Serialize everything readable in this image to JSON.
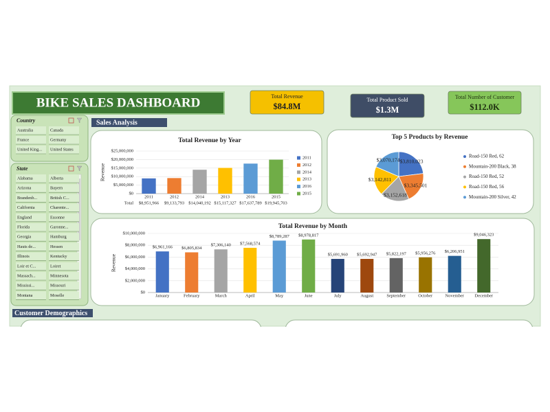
{
  "header": {
    "title": "BIKE SALES DASHBOARD"
  },
  "kpis": [
    {
      "label": "Total Revenue",
      "value": "$84.8M",
      "color": "#f5c000",
      "text_color": "#222222"
    },
    {
      "label": "Total Product Sold",
      "value": "$1.3M",
      "color": "#3f4d66",
      "text_color": "#ffffff"
    },
    {
      "label": "Total Number of Customer",
      "value": "$112.0K",
      "color": "#86c65a",
      "text_color": "#1e2e10"
    }
  ],
  "sections": [
    "Sales Analysis",
    "Customer Demographics"
  ],
  "slicers": [
    {
      "title": "Country",
      "items": [
        "Australia",
        "Canada",
        "France",
        "Germany",
        "United King...",
        "United States"
      ]
    },
    {
      "title": "State",
      "items": [
        "Alabama",
        "Alberta",
        "Arizona",
        "Bayern",
        "Brandenb...",
        "British C...",
        "California",
        "Charente...",
        "England",
        "Essonne",
        "Florida",
        "Garonne...",
        "Georgia",
        "Hamburg",
        "Hauts de...",
        "Hessen",
        "Illinois",
        "Kentucky",
        "Loir et C...",
        "Loiret",
        "Massach...",
        "Minnesota",
        "Mississi...",
        "Missouri",
        "Montana",
        "Moselle"
      ]
    }
  ],
  "chart_data": [
    {
      "type": "bar",
      "title": "Total Revenue by Year",
      "y_label": "Revenue",
      "table_label": "Total",
      "categories": [
        "2011",
        "2012",
        "2014",
        "2013",
        "2016",
        "2015"
      ],
      "values": [
        8951966,
        9133793,
        14040192,
        15117327,
        17637789,
        19945703
      ],
      "value_labels": [
        "$8,951,966",
        "$9,133,793",
        "$14,040,192",
        "$15,117,327",
        "$17,637,789",
        "$19,945,703"
      ],
      "colors": [
        "#4472c4",
        "#ed7d31",
        "#a5a5a5",
        "#ffc000",
        "#5b9bd5",
        "#70ad47"
      ],
      "ylim": [
        0,
        25000000
      ],
      "yticks": [
        {
          "value": 0,
          "label": "$0"
        },
        {
          "value": 5000000,
          "label": "$5,000,000"
        },
        {
          "value": 10000000,
          "label": "$10,000,000"
        },
        {
          "value": 15000000,
          "label": "$15,000,000"
        },
        {
          "value": 20000000,
          "label": "$20,000,000"
        },
        {
          "value": 25000000,
          "label": "$25,000,000"
        }
      ],
      "legend": "right"
    },
    {
      "type": "pie",
      "title": "Top 5 Products by Revenue",
      "categories": [
        "Road-150 Red, 62",
        "Mountain-200 Black, 38",
        "Road-150 Red, 52",
        "Road-150 Red, 56",
        "Mountain-200 Silver, 42"
      ],
      "values": [
        3810023,
        3345501,
        3152618,
        3142811,
        3070174
      ],
      "value_labels": [
        "$3,810,023",
        "$3,345,501",
        "$3,152,618",
        "$3,142,811",
        "$3,070,174"
      ],
      "colors": [
        "#4472c4",
        "#ed7d31",
        "#a5a5a5",
        "#ffc000",
        "#5b9bd5"
      ],
      "legend": "right"
    },
    {
      "type": "bar",
      "title": "Total Revenue by Month",
      "y_label": "Revenue",
      "categories": [
        "January",
        "February",
        "March",
        "April",
        "May",
        "June",
        "July",
        "August",
        "September",
        "October",
        "November",
        "December"
      ],
      "values": [
        6961166,
        6805834,
        7306140,
        7568574,
        8789287,
        8978817,
        5691960,
        5692947,
        5822197,
        5956276,
        6206951,
        9046323
      ],
      "value_labels": [
        "$6,961,166",
        "$6,805,834",
        "$7,306,140",
        "$7,568,574",
        "$8,789,287",
        "$8,978,817",
        "$5,691,960",
        "$5,692,947",
        "$5,822,197",
        "$5,956,276",
        "$6,206,951",
        "$9,046,323"
      ],
      "colors": [
        "#4472c4",
        "#ed7d31",
        "#a5a5a5",
        "#ffc000",
        "#5b9bd5",
        "#70ad47",
        "#264478",
        "#9e480e",
        "#636363",
        "#997300",
        "#255e91",
        "#43682b"
      ],
      "ylim": [
        0,
        10000000
      ],
      "yticks": [
        {
          "value": 0,
          "label": "$0"
        },
        {
          "value": 2000000,
          "label": "$2,000,000"
        },
        {
          "value": 4000000,
          "label": "$4,000,000"
        },
        {
          "value": 6000000,
          "label": "$6,000,000"
        },
        {
          "value": 8000000,
          "label": "$8,000,000"
        },
        {
          "value": 10000000,
          "label": "$10,000,000"
        }
      ]
    }
  ]
}
